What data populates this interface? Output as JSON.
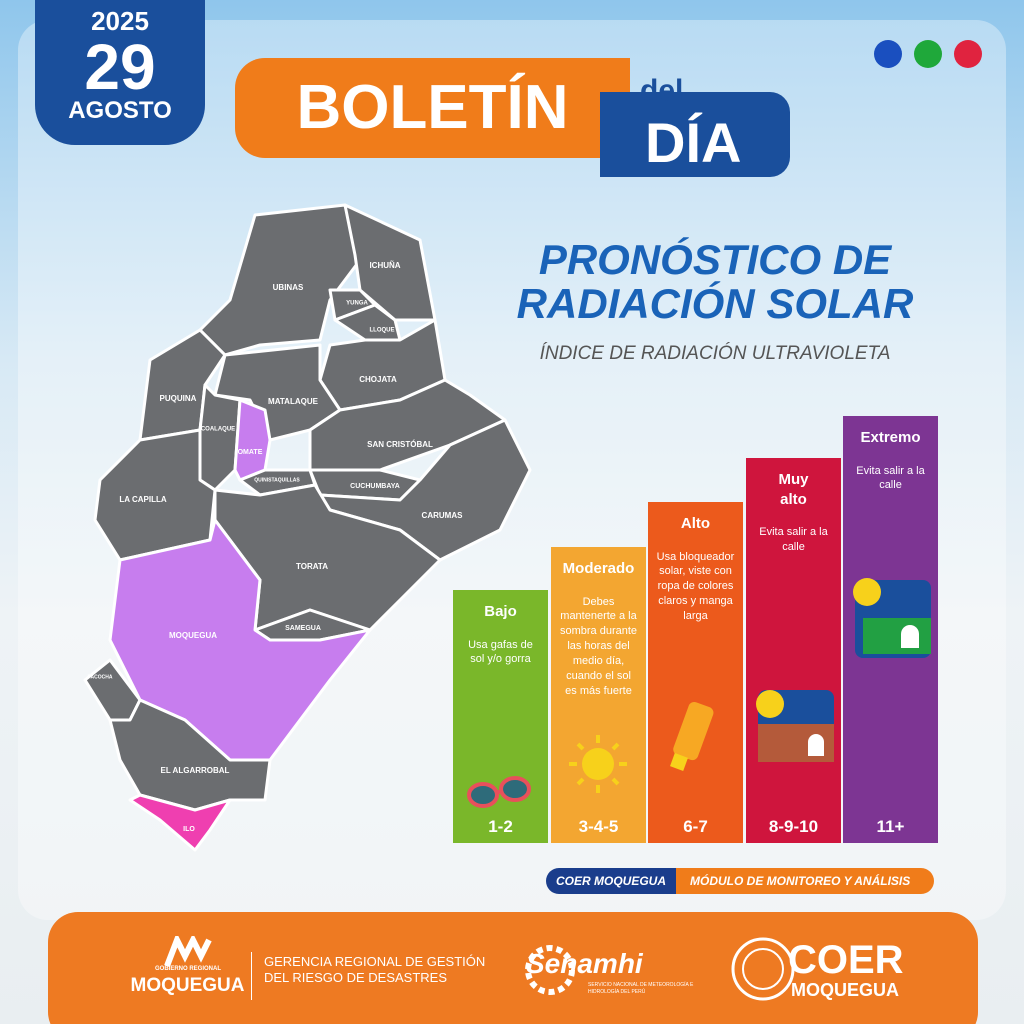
{
  "header": {
    "year": "2025",
    "day": "29",
    "month": "AGOSTO",
    "title_main": "BOLETÍN",
    "title_del": "del",
    "title_dia": "DÍA"
  },
  "heading": {
    "title_line1": "PRONÓSTICO DE",
    "title_line2": "RADIACIÓN SOLAR",
    "subtitle": "ÍNDICE DE RADIACIÓN ULTRAVIOLETA"
  },
  "map": {
    "districts": [
      "UBINAS",
      "ICHUÑA",
      "YUNGA",
      "LLOQUE",
      "CHOJATA",
      "PUQUINA",
      "MATALAQUE",
      "COALAQUE",
      "OMATE",
      "SAN CRISTÓBAL",
      "QUINISTAQUILLAS",
      "CUCHUMBAYA",
      "CARUMAS",
      "LA CAPILLA",
      "TORATA",
      "SAMEGUA",
      "MOQUEGUA",
      "PACOCHA",
      "EL ALGARROBAL",
      "ILO"
    ]
  },
  "uv_scale": [
    {
      "level": "Bajo",
      "advice": "Usa gafas de sol y/o gorra",
      "range": "1-2"
    },
    {
      "level": "Moderado",
      "advice": "Debes mantenerte a la sombra durante las horas del medio día, cuando el sol es más fuerte",
      "range": "3-4-5"
    },
    {
      "level": "Alto",
      "advice": "Usa bloqueador solar, viste con ropa de colores claros y manga larga",
      "range": "6-7"
    },
    {
      "level": "Muy alto",
      "advice": "Evita salir a la calle",
      "range": "8-9-10"
    },
    {
      "level": "Extremo",
      "advice": "Evita salir a la calle",
      "range": "11+"
    }
  ],
  "credit": {
    "org": "COER MOQUEGUA",
    "module": "MÓDULO DE MONITOREO Y ANÁLISIS"
  },
  "footer": {
    "gob_small": "GOBIERNO REGIONAL",
    "gob_name": "MOQUEGUA",
    "gerencia": "GERENCIA REGIONAL DE GESTIÓN DEL RIESGO DE DESASTRES",
    "senamhi": "Senamhi",
    "senamhi_sub": "SERVICIO NACIONAL DE METEOROLOGÍA E HIDROLOGÍA DEL PERÚ",
    "coer": "COER",
    "coer_sub": "MOQUEGUA"
  }
}
